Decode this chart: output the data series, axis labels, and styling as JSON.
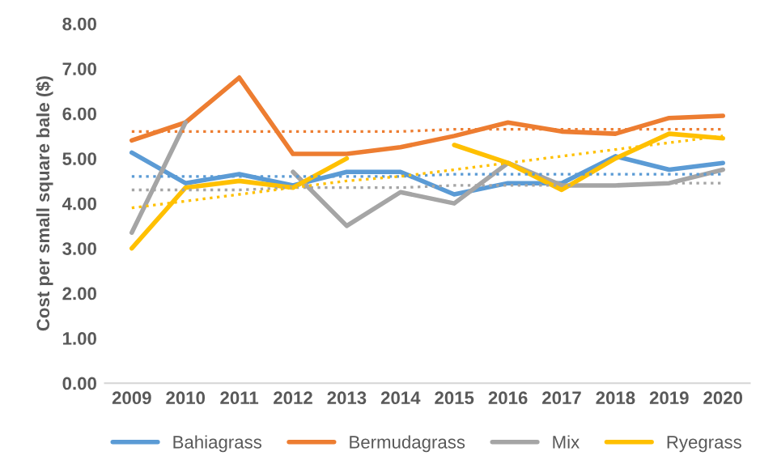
{
  "chart_data": {
    "type": "line",
    "ylabel": "Cost per small square bale ($)",
    "categories": [
      "2009",
      "2010",
      "2011",
      "2012",
      "2013",
      "2014",
      "2015",
      "2016",
      "2017",
      "2018",
      "2019",
      "2020"
    ],
    "ylim": [
      0,
      8
    ],
    "yticks": [
      {
        "value": 0,
        "label": "0.00"
      },
      {
        "value": 1,
        "label": "1.00"
      },
      {
        "value": 2,
        "label": "2.00"
      },
      {
        "value": 3,
        "label": "3.00"
      },
      {
        "value": 4,
        "label": "4.00"
      },
      {
        "value": 5,
        "label": "5.00"
      },
      {
        "value": 6,
        "label": "6.00"
      },
      {
        "value": 7,
        "label": "7.00"
      },
      {
        "value": 8,
        "label": "8.00"
      }
    ],
    "grid": false,
    "legend": "bottom",
    "marker": "none",
    "line_style": "solid",
    "series": [
      {
        "name": "Bahiagrass",
        "color": "#5b9bd5",
        "values": [
          5.13,
          4.45,
          4.65,
          4.4,
          4.7,
          4.7,
          4.2,
          4.45,
          4.45,
          5.05,
          4.75,
          4.9
        ]
      },
      {
        "name": "Bermudagrass",
        "color": "#ed7d31",
        "values": [
          5.4,
          5.8,
          6.8,
          5.1,
          5.1,
          5.25,
          5.5,
          5.8,
          5.6,
          5.55,
          5.9,
          5.95
        ]
      },
      {
        "name": "Mix",
        "color": "#a5a5a5",
        "values": [
          3.35,
          5.8,
          null,
          4.7,
          3.5,
          4.25,
          4.0,
          4.9,
          4.4,
          4.4,
          4.45,
          4.75
        ]
      },
      {
        "name": "Ryegrass",
        "color": "#ffc000",
        "values": [
          3.0,
          4.35,
          4.5,
          4.35,
          5.0,
          null,
          5.3,
          4.9,
          4.3,
          5.0,
          5.55,
          5.45
        ]
      },
      {
        "type": "line",
        "line_style": "dotted",
        "color": "#5b9bd5",
        "values": [
          4.6,
          4.6,
          4.6,
          4.6,
          4.6,
          4.6,
          4.65,
          4.65,
          4.65,
          4.65,
          4.65,
          4.65
        ]
      },
      {
        "type": "line",
        "line_style": "dotted",
        "color": "#ed7d31",
        "values": [
          5.6,
          5.6,
          5.6,
          5.6,
          5.6,
          5.6,
          5.65,
          5.65,
          5.65,
          5.65,
          5.65,
          5.65
        ]
      },
      {
        "type": "line",
        "line_style": "dotted",
        "color": "#a5a5a5",
        "values": [
          4.3,
          4.3,
          4.3,
          4.35,
          4.35,
          4.35,
          4.4,
          4.4,
          4.4,
          4.4,
          4.45,
          4.45
        ]
      },
      {
        "type": "line",
        "line_style": "dotted",
        "color": "#ffc000",
        "values": [
          3.9,
          4.05,
          4.2,
          4.35,
          4.5,
          4.6,
          4.75,
          4.9,
          5.05,
          5.2,
          5.35,
          5.5
        ]
      }
    ]
  }
}
